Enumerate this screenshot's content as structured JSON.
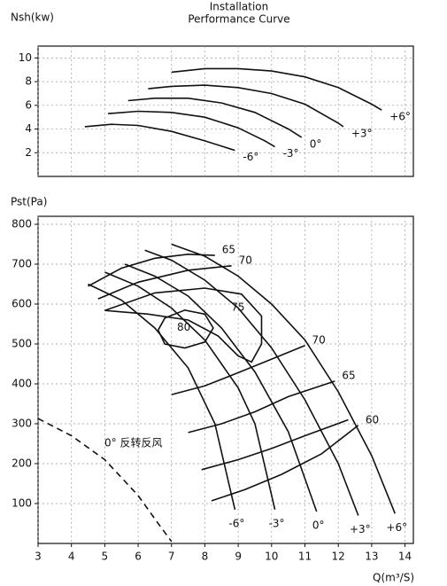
{
  "chart_data": [
    {
      "type": "line",
      "title": [
        "Installation",
        "Performance Curve"
      ],
      "ylabel": "Nsh(kw)",
      "xlim": [
        3,
        14.25
      ],
      "ylim": [
        0,
        11
      ],
      "yticks": [
        2,
        4,
        6,
        8,
        10
      ],
      "grid": true,
      "line_color": "#111111",
      "series": [
        {
          "name": "+6°",
          "x": [
            7,
            8,
            9,
            10,
            11,
            12,
            13,
            13.3
          ],
          "values": [
            8.8,
            9.1,
            9.1,
            8.9,
            8.4,
            7.5,
            6.1,
            5.6
          ]
        },
        {
          "name": "+3°",
          "x": [
            6.3,
            7,
            8,
            9,
            10,
            11,
            12,
            12.15
          ],
          "values": [
            7.4,
            7.6,
            7.7,
            7.5,
            7.0,
            6.1,
            4.5,
            4.2
          ]
        },
        {
          "name": "0°",
          "x": [
            5.7,
            6.5,
            7.5,
            8.5,
            9.5,
            10.5,
            10.9
          ],
          "values": [
            6.4,
            6.6,
            6.6,
            6.2,
            5.4,
            4.0,
            3.3
          ]
        },
        {
          "name": "-3°",
          "x": [
            5.1,
            6,
            7,
            8,
            9,
            9.8,
            10.1
          ],
          "values": [
            5.3,
            5.5,
            5.4,
            5.0,
            4.1,
            3.0,
            2.5
          ]
        },
        {
          "name": "-6°",
          "x": [
            4.4,
            5.2,
            6,
            7,
            8,
            8.9
          ],
          "values": [
            4.2,
            4.4,
            4.3,
            3.8,
            3.0,
            2.2
          ]
        }
      ]
    },
    {
      "type": "line",
      "ylabel": "Pst(Pa)",
      "xlabel": "Q(m³/S)",
      "xlim": [
        3,
        14.25
      ],
      "ylim": [
        0,
        820
      ],
      "xticks": [
        3,
        4,
        5,
        6,
        7,
        8,
        9,
        10,
        11,
        12,
        13,
        14
      ],
      "yticks": [
        100,
        200,
        300,
        400,
        500,
        600,
        700,
        800
      ],
      "grid": true,
      "line_color": "#111111",
      "series": [
        {
          "name": "+6°",
          "x": [
            7,
            8,
            9,
            10,
            11,
            12,
            13,
            13.7
          ],
          "values": [
            750,
            720,
            670,
            600,
            510,
            380,
            220,
            75
          ]
        },
        {
          "name": "+3°",
          "x": [
            6.2,
            7,
            8,
            9,
            10,
            11,
            12,
            12.6
          ],
          "values": [
            735,
            710,
            660,
            590,
            490,
            360,
            200,
            70
          ]
        },
        {
          "name": "0°",
          "x": [
            5.6,
            6.5,
            7.5,
            8.5,
            9.5,
            10.5,
            11.35
          ],
          "values": [
            700,
            670,
            620,
            540,
            430,
            280,
            80
          ]
        },
        {
          "name": "-3°",
          "x": [
            5,
            6,
            7,
            8,
            9,
            9.5,
            10.1
          ],
          "values": [
            680,
            645,
            590,
            510,
            390,
            300,
            85
          ]
        },
        {
          "name": "-6°",
          "x": [
            4.5,
            5.5,
            6.5,
            7.5,
            8.3,
            8.9
          ],
          "values": [
            650,
            610,
            540,
            440,
            300,
            85
          ]
        }
      ],
      "efficiency_curves": [
        {
          "name": "65",
          "x": [
            4.5,
            5.5,
            6.5,
            7.5,
            8.3
          ],
          "values": [
            645,
            690,
            715,
            725,
            722
          ]
        },
        {
          "name": "70",
          "x": [
            4.8,
            6,
            7.5,
            8.8
          ],
          "values": [
            613,
            655,
            685,
            696
          ]
        },
        {
          "name": "75",
          "x": [
            5.0,
            6.5,
            8,
            9.1,
            9.7,
            9.7,
            9.4,
            9.0,
            8.4,
            7.5,
            6.3,
            5.0
          ],
          "values": [
            584,
            628,
            640,
            625,
            570,
            500,
            455,
            470,
            520,
            560,
            575,
            584
          ]
        },
        {
          "name": "80",
          "x": [
            6.6,
            6.8,
            7.4,
            8.0,
            8.25,
            8.0,
            7.4,
            6.8,
            6.6
          ],
          "values": [
            535,
            565,
            585,
            575,
            540,
            505,
            490,
            500,
            535
          ]
        },
        {
          "name": "70",
          "x": [
            7.0,
            8,
            9,
            10,
            11
          ],
          "values": [
            373,
            395,
            428,
            462,
            496
          ]
        },
        {
          "name": "65",
          "x": [
            7.5,
            8.5,
            9.5,
            10.5,
            11.9
          ],
          "values": [
            278,
            300,
            330,
            368,
            407
          ]
        },
        {
          "x": [
            7.9,
            9,
            10,
            11,
            12.3
          ],
          "values": [
            185,
            210,
            238,
            270,
            310
          ]
        },
        {
          "name": "60",
          "x": [
            8.2,
            9.2,
            10.3,
            11.5,
            12.6
          ],
          "values": [
            107,
            135,
            173,
            225,
            296
          ]
        }
      ],
      "reverse_curve": {
        "name": "0° 反转反风",
        "x": [
          3,
          4,
          5,
          6,
          6.6,
          7.0
        ],
        "values": [
          313,
          270,
          210,
          120,
          50,
          5
        ]
      }
    }
  ]
}
